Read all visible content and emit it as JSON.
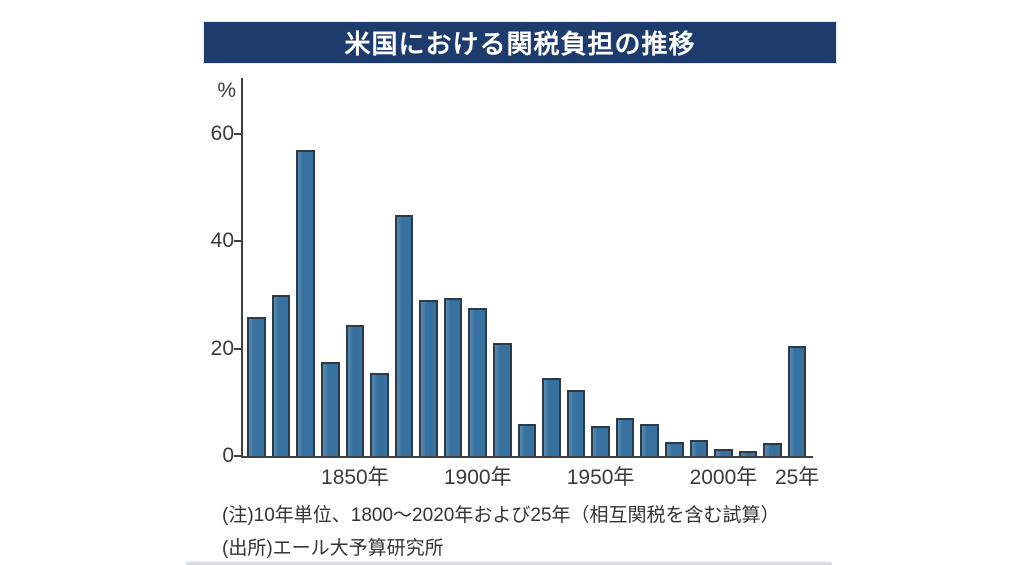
{
  "title": "米国における関税負担の推移",
  "notes": {
    "line1": "(注)10年単位、1800～2020年および25年（相互関税を含む試算）",
    "line2": "(出所)エール大予算研究所"
  },
  "colors": {
    "banner_bg": "#1d3c6d",
    "banner_text": "#ffffff",
    "bar_fill": "#36719f",
    "bar_edge": "#2d3a47",
    "axis": "#404040",
    "tick_text": "#3a3a3a",
    "note_text": "#333333"
  },
  "chart_data": {
    "type": "bar",
    "title": "米国における関税負担の推移",
    "xlabel": "",
    "ylabel": "%",
    "ylim": [
      0,
      70
    ],
    "yticks": [
      0,
      20,
      40,
      60
    ],
    "grid": false,
    "legend": "none",
    "categories": [
      "1810",
      "1820",
      "1830",
      "1840",
      "1850",
      "1860",
      "1870",
      "1880",
      "1890",
      "1900",
      "1910",
      "1920",
      "1930",
      "1940",
      "1950",
      "1960",
      "1970",
      "1980",
      "1990",
      "2000",
      "2010",
      "2020",
      "2025"
    ],
    "values": [
      26,
      30,
      57,
      17.5,
      24.5,
      15.5,
      45,
      29,
      29.5,
      27.5,
      21,
      6,
      14.5,
      12.3,
      5.5,
      7,
      6,
      2.7,
      3,
      1.3,
      1,
      2.4,
      20.5
    ],
    "x_tick_labels": [
      {
        "text": "1850年",
        "category_index": 4
      },
      {
        "text": "1900年",
        "category_index": 9
      },
      {
        "text": "1950年",
        "category_index": 14
      },
      {
        "text": "2000年",
        "category_index": 19
      },
      {
        "text": "25年",
        "category_index": 22
      }
    ],
    "unit_label": "%"
  }
}
